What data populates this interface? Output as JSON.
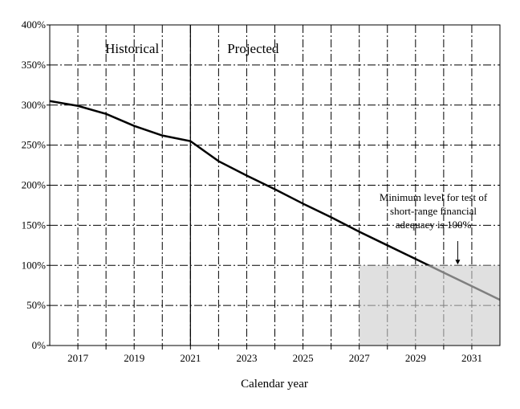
{
  "chart_data": {
    "type": "line",
    "x_label": "Calendar year",
    "x": [
      2016,
      2017,
      2018,
      2019,
      2020,
      2021,
      2022,
      2023,
      2024,
      2025,
      2026,
      2027,
      2028,
      2029,
      2030,
      2031,
      2032
    ],
    "series": [
      {
        "color": "#000000",
        "values": [
          305,
          299,
          289,
          274,
          262,
          255,
          230,
          212,
          195,
          177,
          160,
          142,
          125,
          108,
          91,
          74,
          57
        ]
      }
    ],
    "xlim": [
      2016,
      2032
    ],
    "xticks": [
      2017,
      2019,
      2021,
      2023,
      2025,
      2027,
      2029,
      2031
    ],
    "x_minor_gridlines": [
      2018,
      2020,
      2022,
      2024,
      2026,
      2028,
      2030
    ],
    "divider_x": 2021,
    "ylim": [
      0,
      400
    ],
    "yticks": [
      {
        "value": 0,
        "label": "0%"
      },
      {
        "value": 50,
        "label": "50%"
      },
      {
        "value": 100,
        "label": "100%"
      },
      {
        "value": 150,
        "label": "150%"
      },
      {
        "value": 200,
        "label": "200%"
      },
      {
        "value": 250,
        "label": "250%"
      },
      {
        "value": 300,
        "label": "300%"
      },
      {
        "value": 350,
        "label": "350%"
      },
      {
        "value": 400,
        "label": "400%"
      }
    ],
    "grid": true,
    "region_labels": [
      "Historical",
      "Projected"
    ],
    "shaded_region": {
      "x": [
        2027,
        2032
      ],
      "y": [
        0,
        100
      ]
    },
    "annotation": {
      "lines": [
        "Minimum level for test of",
        "short-range financial",
        "adequacy is 100%"
      ],
      "x": 2030.5,
      "y": 100
    }
  }
}
